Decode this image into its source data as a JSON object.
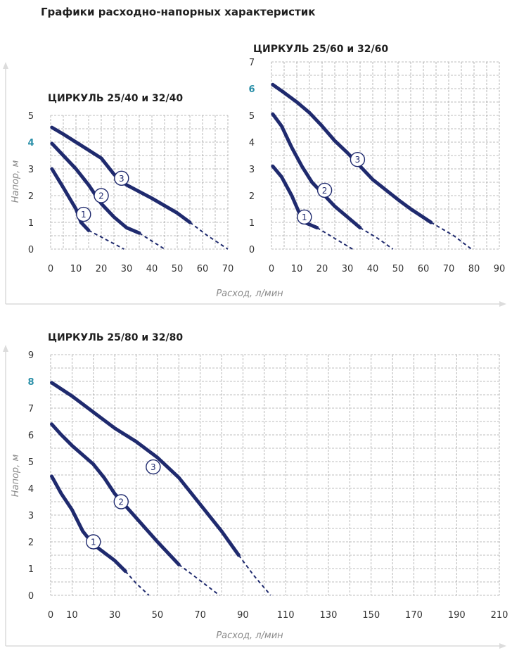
{
  "page_title": "Графики расходно-напорных характеристик",
  "colors": {
    "curve": "#1f2a6e",
    "grid": "#a6a6a6",
    "axis_frame": "#dcdcdc",
    "highlight_tick": "#2a8fa8",
    "axis_label": "#8a8a8a"
  },
  "group_labels": {
    "top_y": "Напор, м",
    "top_x": "Расход, л/мин",
    "bottom_y": "Напор, м",
    "bottom_x": "Расход, л/мин"
  },
  "chart_data": [
    {
      "type": "line",
      "title": "ЦИРКУЛЬ 25/40 и 32/40",
      "xlim": [
        0,
        70
      ],
      "ylim": [
        0,
        5
      ],
      "x_ticks": [
        0,
        10,
        20,
        30,
        40,
        50,
        60,
        70
      ],
      "y_ticks": [
        0,
        1,
        2,
        3,
        4,
        5
      ],
      "highlight_y_tick": 4,
      "grid": true,
      "series": [
        {
          "name": "1",
          "solid": [
            [
              0.5,
              3.0
            ],
            [
              5,
              2.3
            ],
            [
              10,
              1.5
            ],
            [
              12,
              1.0
            ],
            [
              15,
              0.7
            ]
          ],
          "dashed": [
            [
              15,
              0.7
            ],
            [
              22,
              0.35
            ],
            [
              29,
              0
            ]
          ],
          "label_at": [
            13,
            1.3
          ]
        },
        {
          "name": "2",
          "solid": [
            [
              0.5,
              3.95
            ],
            [
              5,
              3.5
            ],
            [
              10,
              3.0
            ],
            [
              15,
              2.4
            ],
            [
              20,
              1.7
            ],
            [
              25,
              1.2
            ],
            [
              30,
              0.8
            ],
            [
              35,
              0.6
            ]
          ],
          "dashed": [
            [
              35,
              0.6
            ],
            [
              40,
              0.3
            ],
            [
              45,
              0
            ]
          ],
          "label_at": [
            20,
            2.0
          ]
        },
        {
          "name": "3",
          "solid": [
            [
              0.5,
              4.55
            ],
            [
              5,
              4.3
            ],
            [
              10,
              4.0
            ],
            [
              15,
              3.7
            ],
            [
              20,
              3.4
            ],
            [
              25,
              2.8
            ],
            [
              30,
              2.4
            ],
            [
              40,
              1.9
            ],
            [
              50,
              1.35
            ],
            [
              55,
              1.0
            ]
          ],
          "dashed": [
            [
              55,
              1.0
            ],
            [
              62,
              0.5
            ],
            [
              70,
              0
            ]
          ],
          "label_at": [
            28,
            2.65
          ]
        }
      ]
    },
    {
      "type": "line",
      "title": "ЦИРКУЛЬ 25/60 и 32/60",
      "xlim": [
        0,
        90
      ],
      "ylim": [
        0,
        7
      ],
      "x_ticks": [
        0,
        10,
        20,
        30,
        40,
        50,
        60,
        70,
        80,
        90
      ],
      "y_ticks": [
        0,
        1,
        2,
        3,
        4,
        5,
        6,
        7
      ],
      "highlight_y_tick": 6,
      "grid": true,
      "series": [
        {
          "name": "1",
          "solid": [
            [
              0.5,
              3.1
            ],
            [
              4,
              2.7
            ],
            [
              8,
              2.0
            ],
            [
              11,
              1.35
            ],
            [
              13,
              1.0
            ],
            [
              18,
              0.8
            ]
          ],
          "dashed": [
            [
              18,
              0.8
            ],
            [
              25,
              0.4
            ],
            [
              32,
              0
            ]
          ],
          "label_at": [
            13,
            1.2
          ]
        },
        {
          "name": "2",
          "solid": [
            [
              0.5,
              5.05
            ],
            [
              4,
              4.6
            ],
            [
              8,
              3.8
            ],
            [
              12,
              3.1
            ],
            [
              16,
              2.5
            ],
            [
              20,
              2.1
            ],
            [
              25,
              1.6
            ],
            [
              30,
              1.2
            ],
            [
              35,
              0.8
            ]
          ],
          "dashed": [
            [
              35,
              0.8
            ],
            [
              42,
              0.4
            ],
            [
              48,
              0
            ]
          ],
          "label_at": [
            21,
            2.2
          ]
        },
        {
          "name": "3",
          "solid": [
            [
              0.5,
              6.15
            ],
            [
              5,
              5.85
            ],
            [
              10,
              5.5
            ],
            [
              15,
              5.1
            ],
            [
              20,
              4.6
            ],
            [
              25,
              4.05
            ],
            [
              30,
              3.6
            ],
            [
              35,
              3.1
            ],
            [
              40,
              2.6
            ],
            [
              50,
              1.85
            ],
            [
              55,
              1.5
            ],
            [
              63,
              1.0
            ]
          ],
          "dashed": [
            [
              63,
              1.0
            ],
            [
              72,
              0.5
            ],
            [
              79,
              0
            ]
          ],
          "label_at": [
            34,
            3.35
          ]
        }
      ]
    },
    {
      "type": "line",
      "title": "ЦИРКУЛЬ 25/80 и 32/80",
      "xlim": [
        0,
        210
      ],
      "ylim": [
        0,
        9
      ],
      "x_ticks": [
        0,
        10,
        30,
        50,
        70,
        90,
        110,
        130,
        150,
        170,
        190,
        210
      ],
      "y_ticks": [
        0,
        1,
        2,
        3,
        4,
        5,
        6,
        7,
        8,
        9
      ],
      "highlight_y_tick": 8,
      "grid": true,
      "series": [
        {
          "name": "1",
          "solid": [
            [
              0.5,
              4.45
            ],
            [
              5,
              3.8
            ],
            [
              10,
              3.2
            ],
            [
              15,
              2.4
            ],
            [
              20,
              1.9
            ],
            [
              25,
              1.6
            ],
            [
              30,
              1.3
            ],
            [
              35,
              0.9
            ]
          ],
          "dashed": [
            [
              35,
              0.9
            ],
            [
              40,
              0.45
            ],
            [
              46,
              0
            ]
          ],
          "label_at": [
            20,
            2.0
          ]
        },
        {
          "name": "2",
          "solid": [
            [
              0.5,
              6.4
            ],
            [
              5,
              6.0
            ],
            [
              10,
              5.6
            ],
            [
              20,
              4.9
            ],
            [
              25,
              4.4
            ],
            [
              30,
              3.8
            ],
            [
              40,
              2.9
            ],
            [
              50,
              2.0
            ],
            [
              60,
              1.15
            ]
          ],
          "dashed": [
            [
              60,
              1.15
            ],
            [
              70,
              0.55
            ],
            [
              79,
              0
            ]
          ],
          "label_at": [
            33,
            3.5
          ]
        },
        {
          "name": "3",
          "solid": [
            [
              0.5,
              7.95
            ],
            [
              10,
              7.45
            ],
            [
              20,
              6.85
            ],
            [
              30,
              6.25
            ],
            [
              40,
              5.75
            ],
            [
              50,
              5.15
            ],
            [
              60,
              4.4
            ],
            [
              70,
              3.4
            ],
            [
              80,
              2.4
            ],
            [
              88,
              1.5
            ]
          ],
          "dashed": [
            [
              88,
              1.5
            ],
            [
              95,
              0.75
            ],
            [
              103,
              0
            ]
          ],
          "label_at": [
            48,
            4.8
          ]
        }
      ]
    }
  ]
}
